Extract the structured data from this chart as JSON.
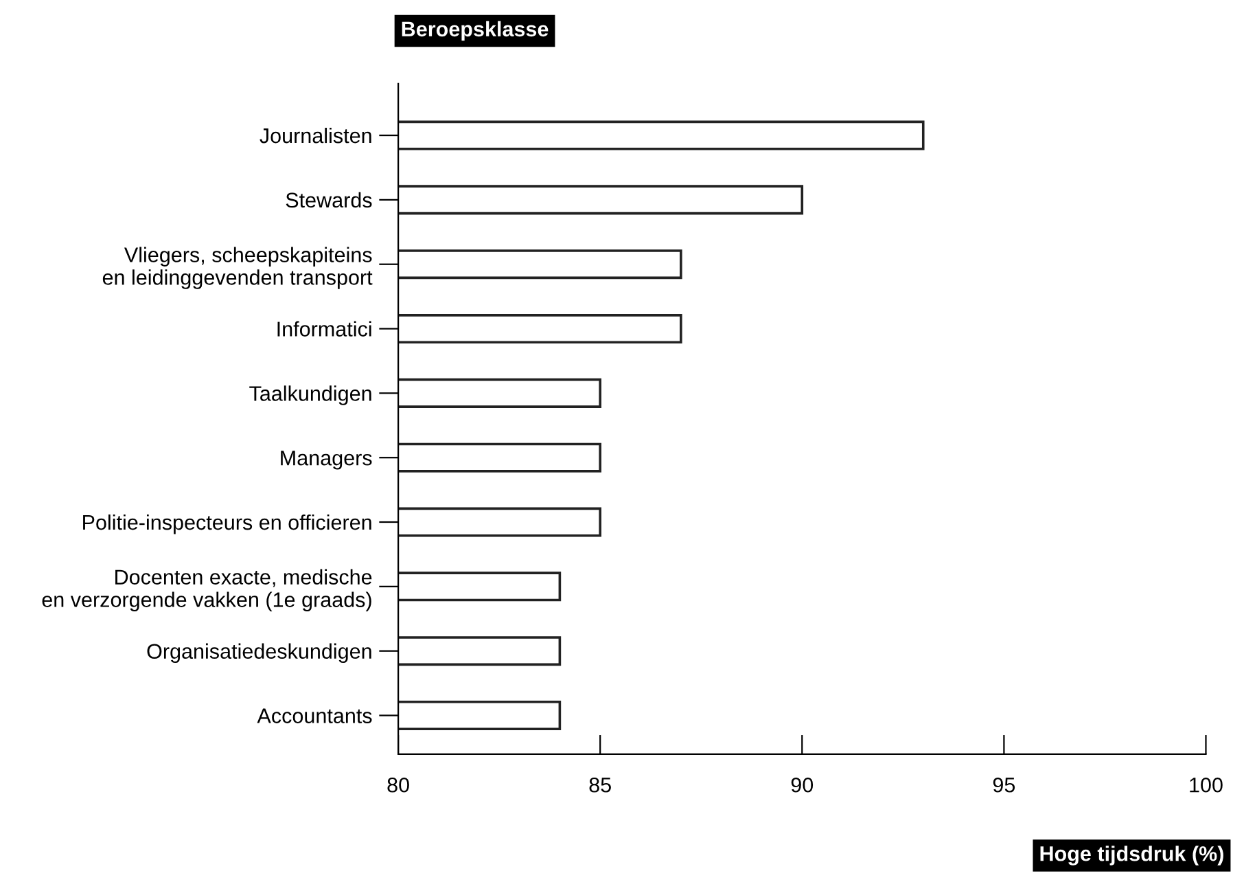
{
  "chart_data": {
    "type": "bar",
    "orientation": "horizontal",
    "ylabel": "Beroepsklasse",
    "xlabel": "Hoge tijdsdruk (%)",
    "categories": [
      "Journalisten",
      "Stewards",
      "Vliegers, scheepskapiteins\nen leidinggevenden transport",
      "Informatici",
      "Taalkundigen",
      "Managers",
      "Politie-inspecteurs en officieren",
      "Docenten exacte, medische\nen verzorgende vakken (1e graads)",
      "Organisatiedeskundigen",
      "Accountants"
    ],
    "values": [
      93,
      90,
      87,
      87,
      85,
      85,
      85,
      84,
      84,
      84
    ],
    "color": "#ffffff",
    "xlim": [
      80,
      100
    ],
    "xticks": [
      80,
      85,
      90,
      95,
      100
    ],
    "grid": false,
    "legend": false
  }
}
